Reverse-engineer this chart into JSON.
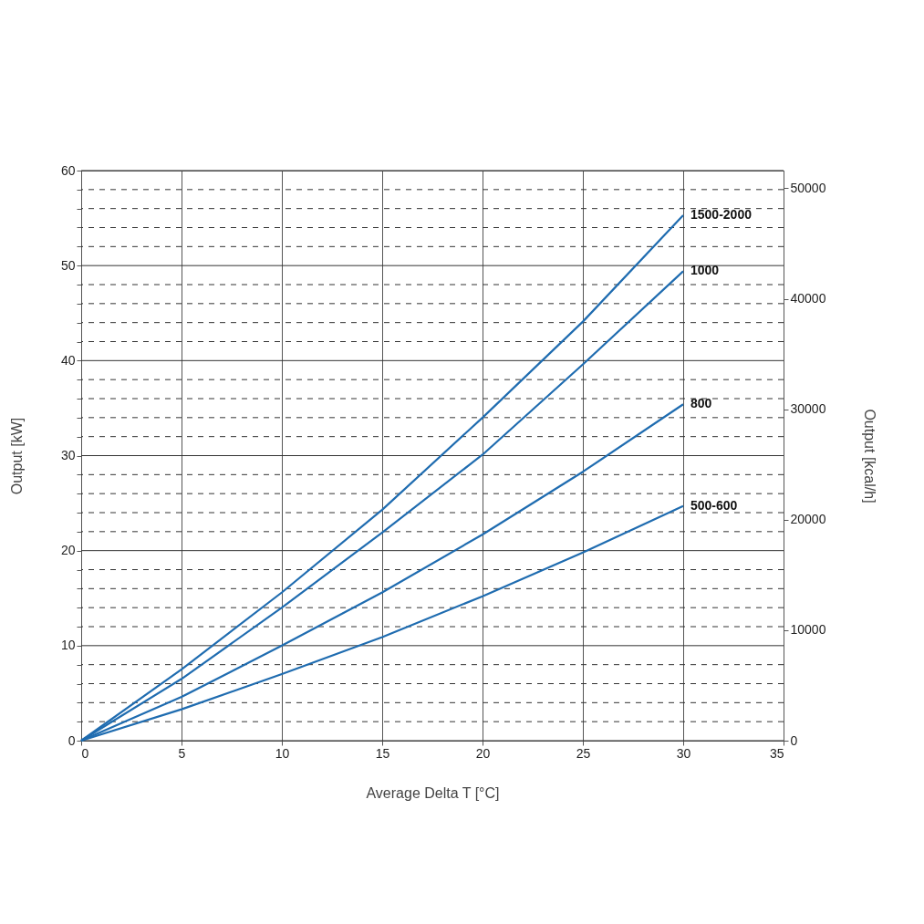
{
  "chart_data": {
    "type": "line",
    "xlabel": "Average Delta T [°C]",
    "ylabel": "Output [kW]",
    "y2label": "Output [kcal/h]",
    "x": [
      0,
      5,
      10,
      15,
      20,
      25,
      30
    ],
    "series": [
      {
        "name": "1500-2000",
        "color": "#1f6cb0",
        "values": [
          0,
          7.5,
          15.6,
          24.3,
          34.0,
          44.1,
          55.3
        ]
      },
      {
        "name": "1000",
        "color": "#1f6cb0",
        "values": [
          0,
          6.5,
          14.0,
          21.9,
          30.1,
          39.6,
          49.4
        ]
      },
      {
        "name": "800",
        "color": "#1f6cb0",
        "values": [
          0,
          4.6,
          10.0,
          15.6,
          21.7,
          28.3,
          35.4
        ]
      },
      {
        "name": "500-600",
        "color": "#1f6cb0",
        "values": [
          0,
          3.3,
          7.0,
          10.9,
          15.2,
          19.8,
          24.7
        ]
      }
    ],
    "xlim": [
      0,
      35
    ],
    "xticks": [
      0,
      5,
      10,
      15,
      20,
      25,
      30,
      35
    ],
    "ylim": [
      0,
      60
    ],
    "yticks": [
      0,
      {
        "value": 2,
        "label": null
      },
      {
        "value": 4,
        "label": null
      },
      {
        "value": 6,
        "label": null
      },
      {
        "value": 8,
        "label": null
      },
      10,
      {
        "value": 12,
        "label": null
      },
      {
        "value": 14,
        "label": null
      },
      {
        "value": 16,
        "label": null
      },
      {
        "value": 18,
        "label": null
      },
      20,
      {
        "value": 22,
        "label": null
      },
      {
        "value": 24,
        "label": null
      },
      {
        "value": 26,
        "label": null
      },
      {
        "value": 28,
        "label": null
      },
      30,
      {
        "value": 32,
        "label": null
      },
      {
        "value": 34,
        "label": null
      },
      {
        "value": 36,
        "label": null
      },
      {
        "value": 38,
        "label": null
      },
      40,
      {
        "value": 42,
        "label": null
      },
      {
        "value": 44,
        "label": null
      },
      {
        "value": 46,
        "label": null
      },
      {
        "value": 48,
        "label": null
      },
      50,
      {
        "value": 52,
        "label": null
      },
      {
        "value": 54,
        "label": null
      },
      {
        "value": 56,
        "label": null
      },
      {
        "value": 58,
        "label": null
      },
      60
    ],
    "y2lim": [
      0,
      51600
    ],
    "y2ticks": [
      0,
      10000,
      20000,
      30000,
      40000,
      50000
    ],
    "grid": true,
    "marker": "none",
    "line_style": "solid"
  }
}
